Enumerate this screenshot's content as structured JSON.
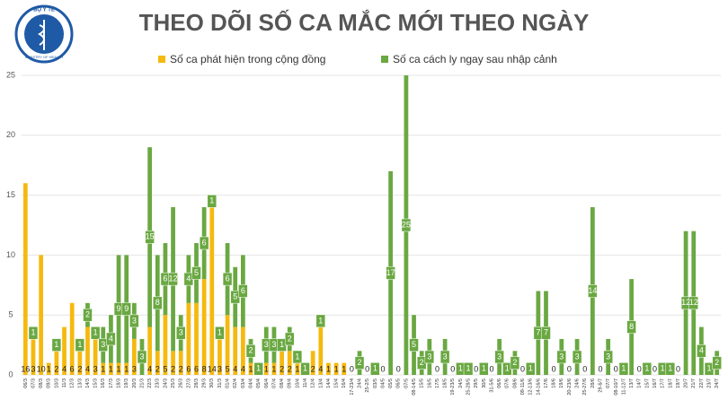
{
  "logo": {
    "top": "BỘ Y TẾ",
    "bottom": "MINISTRY OF HEALTH"
  },
  "chart_data": {
    "type": "stacked-bar",
    "title": "THEO DÕI SỐ CA MẮC MỚI THEO NGÀY",
    "categories": [
      "06/3",
      "07/3",
      "08/3",
      "09/3",
      "10/3",
      "11/3",
      "12/3",
      "13/3",
      "14/3",
      "15/3",
      "16/3",
      "17/3",
      "18/3",
      "19/3",
      "20/3",
      "21/3",
      "22/3",
      "23/3",
      "24/3",
      "25/3",
      "26/3",
      "27/3",
      "28/3",
      "29/3",
      "30/3",
      "31/3",
      "01/4",
      "02/4",
      "03/4",
      "04/4",
      "05/4",
      "06/4",
      "07/4",
      "08/4",
      "09/4",
      "10/4",
      "11/4",
      "12/4",
      "13/4",
      "14/4",
      "15/4",
      "16/4",
      "17-23/4",
      "24/4",
      "25-2/5",
      "03/5",
      "04/5",
      "05/5",
      "06/5",
      "07/5",
      "08-14/5",
      "15/5",
      "16/5",
      "17/5",
      "18/5",
      "19-23/5",
      "24/5",
      "25-28/5",
      "29/5",
      "30/5",
      "31-5/6",
      "06/6",
      "07/6",
      "08/6",
      "09-11/6",
      "12-13/6",
      "14-16/6",
      "17/6",
      "18/6",
      "19/6",
      "20-23/6",
      "24/6",
      "25-27/6",
      "28/6",
      "29-6/7",
      "07/7",
      "08-10/7",
      "11-12/7",
      "13/7",
      "14/7",
      "15/7",
      "16/7",
      "17/7",
      "18/7",
      "19/7",
      "20/7",
      "21/7",
      "22/7",
      "23/7",
      "24/7"
    ],
    "series": [
      {
        "name": "Số ca phát hiện trong cộng đồng",
        "color": "#f5b90f",
        "values": [
          16,
          3,
          10,
          1,
          2,
          4,
          6,
          2,
          4,
          3,
          1,
          1,
          1,
          1,
          3,
          0,
          4,
          2,
          5,
          2,
          2,
          6,
          6,
          8,
          14,
          3,
          5,
          4,
          4,
          1,
          0,
          1,
          1,
          2,
          2,
          1,
          0,
          2,
          4,
          1,
          1,
          1,
          0,
          0,
          0,
          0,
          0,
          0,
          0,
          0,
          0,
          0,
          0,
          0,
          0,
          0,
          0,
          0,
          0,
          0,
          0,
          0,
          0,
          0,
          0,
          0,
          0,
          0,
          0,
          0,
          0,
          0,
          0,
          0,
          0,
          0,
          0,
          0,
          0,
          0,
          0,
          0,
          0,
          0,
          0,
          0,
          0,
          0,
          0,
          0
        ]
      },
      {
        "name": "Số ca cách ly ngay sau nhập cảnh",
        "color": "#6aa842",
        "values": [
          0,
          1,
          0,
          0,
          1,
          0,
          0,
          1,
          2,
          1,
          3,
          4,
          9,
          9,
          3,
          3,
          15,
          8,
          6,
          12,
          3,
          4,
          5,
          6,
          1,
          1,
          6,
          5,
          6,
          2,
          1,
          3,
          3,
          1,
          2,
          1,
          1,
          0,
          1,
          0,
          0,
          0,
          0,
          2,
          0,
          1,
          0,
          17,
          0,
          25,
          5,
          2,
          3,
          0,
          3,
          0,
          1,
          1,
          0,
          1,
          0,
          3,
          1,
          2,
          0,
          1,
          7,
          7,
          0,
          3,
          0,
          3,
          0,
          14,
          0,
          3,
          0,
          1,
          8,
          0,
          1,
          0,
          1,
          1,
          0,
          12,
          12,
          4,
          1,
          2
        ]
      }
    ],
    "ylim": [
      0,
      25
    ],
    "yticks": [
      0,
      5,
      10,
      15,
      20,
      25
    ],
    "grid": true
  }
}
